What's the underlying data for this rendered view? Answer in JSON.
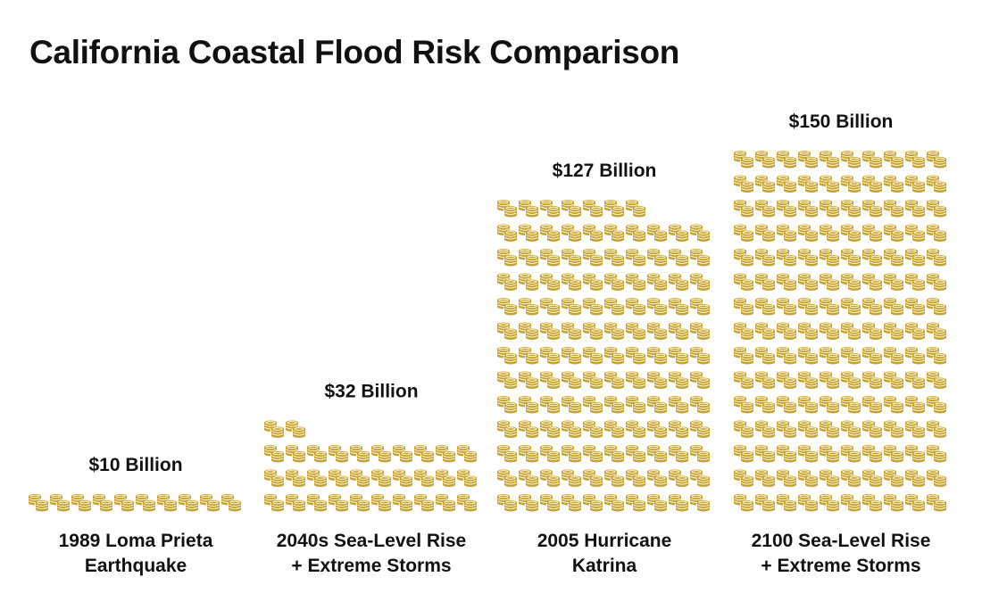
{
  "chart_data": {
    "type": "pictogram",
    "title": "California Coastal Flood Risk Comparison",
    "unit_per_icon": "$1 Billion",
    "icon": "coin-stack-icon",
    "icon_color": "#c9a227",
    "icons_per_row": 10,
    "categories": [
      {
        "lines": [
          "1989 Loma Prieta",
          "Earthquake"
        ],
        "value": 10,
        "value_label": "$10 Billion"
      },
      {
        "lines": [
          "2040s Sea-Level Rise",
          "+ Extreme Storms"
        ],
        "value": 32,
        "value_label": "$32 Billion"
      },
      {
        "lines": [
          "2005 Hurricane",
          "Katrina"
        ],
        "value": 127,
        "value_label": "$127 Billion"
      },
      {
        "lines": [
          "2100 Sea-Level Rise",
          "+ Extreme Storms"
        ],
        "value": 150,
        "value_label": "$150 Billion"
      }
    ]
  }
}
